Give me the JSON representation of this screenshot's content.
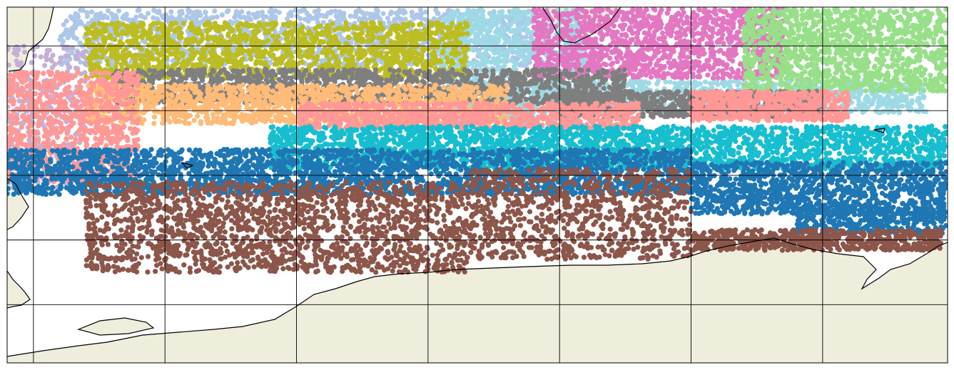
{
  "map": {
    "projection": "plate-carree",
    "extent_deg": {
      "lon_min": -180,
      "lon_max": -108.5,
      "lat_min": 53.5,
      "lat_max": 81
    },
    "graticule": {
      "lons": [
        -178,
        -168,
        -158,
        -148,
        -138,
        -128,
        -118
      ],
      "lats": [
        58,
        63,
        68,
        73,
        78
      ]
    },
    "colors": {
      "ocean": "#ffffff",
      "land": "#efeedc",
      "coastline": "#000000",
      "grid": "#000000"
    },
    "point_clusters": [
      {
        "name": "cluster-1",
        "color": "#aec7e8",
        "lon": [
          -176,
          -140
        ],
        "lat": [
          76.5,
          80.8
        ],
        "count": 1400,
        "r": 3.6
      },
      {
        "name": "cluster-2",
        "color": "#9edae5",
        "lon": [
          -147,
          -136
        ],
        "lat": [
          72,
          80.8
        ],
        "count": 900,
        "r": 3.6
      },
      {
        "name": "cluster-3",
        "color": "#9edae5",
        "lon": [
          -144,
          -110
        ],
        "lat": [
          72.8,
          75.3
        ],
        "count": 1000,
        "r": 3.6
      },
      {
        "name": "cluster-4",
        "color": "#e377c2",
        "lon": [
          -140,
          -121
        ],
        "lat": [
          75.5,
          80.9
        ],
        "count": 1300,
        "r": 3.6
      },
      {
        "name": "cluster-5",
        "color": "#98df8a",
        "lon": [
          -124,
          -108.6
        ],
        "lat": [
          74.5,
          80.9
        ],
        "count": 1300,
        "r": 3.6
      },
      {
        "name": "cluster-6",
        "color": "#c5b0d5",
        "lon": [
          -180,
          -174
        ],
        "lat": [
          67,
          78
        ],
        "count": 350,
        "r": 3.6
      },
      {
        "name": "cluster-7",
        "color": "#bcbd22",
        "lon": [
          -174,
          -145
        ],
        "lat": [
          75.5,
          79.8
        ],
        "count": 1500,
        "r": 3.6
      },
      {
        "name": "cluster-8",
        "color": "#7f7f7f",
        "lon": [
          -172,
          -133
        ],
        "lat": [
          73.5,
          76.2
        ],
        "count": 1500,
        "r": 3.6
      },
      {
        "name": "cluster-9",
        "color": "#7f7f7f",
        "lon": [
          -138,
          -118
        ],
        "lat": [
          72.5,
          74.5
        ],
        "count": 700,
        "r": 3.6
      },
      {
        "name": "cluster-10",
        "color": "#ffbb78",
        "lon": [
          -174,
          -142
        ],
        "lat": [
          72,
          75
        ],
        "count": 1400,
        "r": 3.6
      },
      {
        "name": "cluster-11",
        "color": "#ff9896",
        "lon": [
          -180,
          -170
        ],
        "lat": [
          67.5,
          76
        ],
        "count": 900,
        "r": 3.6
      },
      {
        "name": "cluster-12",
        "color": "#ff9896",
        "lon": [
          -158,
          -132
        ],
        "lat": [
          71.6,
          73.6
        ],
        "count": 900,
        "r": 3.6
      },
      {
        "name": "cluster-13",
        "color": "#ff9896",
        "lon": [
          -128,
          -116
        ],
        "lat": [
          72.2,
          74.5
        ],
        "count": 600,
        "r": 3.6
      },
      {
        "name": "cluster-14",
        "color": "#17becf",
        "lon": [
          -160,
          -108.6
        ],
        "lat": [
          68.5,
          71.8
        ],
        "count": 2600,
        "r": 3.6
      },
      {
        "name": "cluster-15",
        "color": "#1f77b4",
        "lon": [
          -180,
          -128
        ],
        "lat": [
          66.5,
          70
        ],
        "count": 2600,
        "r": 3.6
      },
      {
        "name": "cluster-16",
        "color": "#1f77b4",
        "lon": [
          -128,
          -108.6
        ],
        "lat": [
          65,
          69
        ],
        "count": 1100,
        "r": 3.6
      },
      {
        "name": "cluster-17",
        "color": "#1f77b4",
        "lon": [
          -120,
          -108.6
        ],
        "lat": [
          63.5,
          65.5
        ],
        "count": 400,
        "r": 3.6
      },
      {
        "name": "cluster-18",
        "color": "#8c564b",
        "lon": [
          -174,
          -145
        ],
        "lat": [
          60.5,
          67.5
        ],
        "count": 1800,
        "r": 3.6
      },
      {
        "name": "cluster-19",
        "color": "#8c564b",
        "lon": [
          -145,
          -128
        ],
        "lat": [
          61.5,
          68.5
        ],
        "count": 900,
        "r": 3.6
      },
      {
        "name": "cluster-20",
        "color": "#8c564b",
        "lon": [
          -128,
          -109
        ],
        "lat": [
          62.2,
          63.8
        ],
        "count": 600,
        "r": 3.6
      }
    ]
  }
}
